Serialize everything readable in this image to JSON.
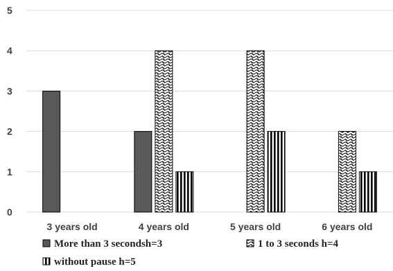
{
  "chart_data": {
    "type": "bar",
    "categories": [
      "3 years old",
      "4 years old",
      "5 years old",
      "6 years old"
    ],
    "series": [
      {
        "name": "More than 3 secondsh=3",
        "values": [
          3,
          2,
          0,
          0
        ],
        "pattern": "solid",
        "color": "#595959"
      },
      {
        "name": "1 to 3 seconds h=4",
        "values": [
          0,
          4,
          4,
          2
        ],
        "pattern": "wave",
        "color": "#000000"
      },
      {
        "name": "without pause h=5",
        "values": [
          0,
          1,
          2,
          1
        ],
        "pattern": "vertical-stripes",
        "color": "#000000"
      }
    ],
    "yticks": [
      0,
      1,
      2,
      3,
      4,
      5
    ],
    "ylim": [
      0,
      5
    ],
    "grid": true,
    "legend_position": "bottom"
  }
}
